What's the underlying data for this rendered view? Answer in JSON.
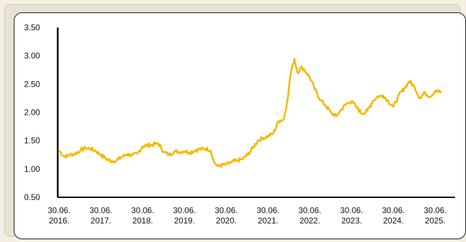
{
  "chart_data": {
    "type": "line",
    "title": "",
    "xlabel": "",
    "ylabel": "",
    "x_tick_labels": [
      {
        "line1": "30.06.",
        "line2": "2016."
      },
      {
        "line1": "30.06.",
        "line2": "2017."
      },
      {
        "line1": "30.06.",
        "line2": "2018."
      },
      {
        "line1": "30.06.",
        "line2": "2019."
      },
      {
        "line1": "30.06.",
        "line2": "2020."
      },
      {
        "line1": "30.06.",
        "line2": "2021."
      },
      {
        "line1": "30.06.",
        "line2": "2022."
      },
      {
        "line1": "30.06.",
        "line2": "2023."
      },
      {
        "line1": "30.06.",
        "line2": "2024."
      },
      {
        "line1": "30.06.",
        "line2": "2025."
      }
    ],
    "y_tick_labels": [
      "0.50",
      "1.00",
      "1.50",
      "2.00",
      "2.50",
      "3.00",
      "3.50"
    ],
    "ylim": [
      0.5,
      3.5
    ],
    "xlim": [
      "2016-06-30",
      "2025-08-31"
    ],
    "grid": false,
    "series": [
      {
        "color": "#f5b800",
        "points": [
          [
            "2016-06-30",
            1.32
          ],
          [
            "2016-08-15",
            1.22
          ],
          [
            "2016-10-01",
            1.25
          ],
          [
            "2016-11-15",
            1.27
          ],
          [
            "2017-01-01",
            1.33
          ],
          [
            "2017-02-15",
            1.37
          ],
          [
            "2017-04-01",
            1.36
          ],
          [
            "2017-05-15",
            1.32
          ],
          [
            "2017-06-30",
            1.25
          ],
          [
            "2017-08-15",
            1.18
          ],
          [
            "2017-10-01",
            1.14
          ],
          [
            "2017-11-15",
            1.15
          ],
          [
            "2018-01-01",
            1.22
          ],
          [
            "2018-02-15",
            1.26
          ],
          [
            "2018-04-01",
            1.24
          ],
          [
            "2018-05-15",
            1.27
          ],
          [
            "2018-06-30",
            1.4
          ],
          [
            "2018-08-15",
            1.42
          ],
          [
            "2018-10-01",
            1.43
          ],
          [
            "2018-11-15",
            1.45
          ],
          [
            "2019-01-01",
            1.3
          ],
          [
            "2019-02-15",
            1.25
          ],
          [
            "2019-04-01",
            1.31
          ],
          [
            "2019-05-15",
            1.3
          ],
          [
            "2019-06-30",
            1.32
          ],
          [
            "2019-08-15",
            1.29
          ],
          [
            "2019-10-01",
            1.33
          ],
          [
            "2019-11-15",
            1.35
          ],
          [
            "2020-01-01",
            1.36
          ],
          [
            "2020-02-15",
            1.33
          ],
          [
            "2020-03-15",
            1.12
          ],
          [
            "2020-04-15",
            1.05
          ],
          [
            "2020-06-30",
            1.08
          ],
          [
            "2020-08-15",
            1.12
          ],
          [
            "2020-10-01",
            1.15
          ],
          [
            "2020-11-15",
            1.17
          ],
          [
            "2021-01-01",
            1.25
          ],
          [
            "2021-02-15",
            1.37
          ],
          [
            "2021-04-01",
            1.5
          ],
          [
            "2021-05-15",
            1.55
          ],
          [
            "2021-06-30",
            1.58
          ],
          [
            "2021-08-15",
            1.63
          ],
          [
            "2021-10-01",
            1.85
          ],
          [
            "2021-11-15",
            1.88
          ],
          [
            "2021-12-15",
            2.2
          ],
          [
            "2022-01-15",
            2.7
          ],
          [
            "2022-02-15",
            2.95
          ],
          [
            "2022-03-15",
            2.7
          ],
          [
            "2022-04-15",
            2.8
          ],
          [
            "2022-05-15",
            2.75
          ],
          [
            "2022-06-30",
            2.62
          ],
          [
            "2022-08-15",
            2.4
          ],
          [
            "2022-10-01",
            2.22
          ],
          [
            "2022-11-15",
            2.12
          ],
          [
            "2023-01-01",
            2.0
          ],
          [
            "2023-02-15",
            1.93
          ],
          [
            "2023-04-01",
            2.05
          ],
          [
            "2023-05-15",
            2.15
          ],
          [
            "2023-06-30",
            2.2
          ],
          [
            "2023-08-15",
            2.08
          ],
          [
            "2023-10-01",
            1.98
          ],
          [
            "2023-11-15",
            2.03
          ],
          [
            "2024-01-01",
            2.2
          ],
          [
            "2024-02-15",
            2.28
          ],
          [
            "2024-04-01",
            2.3
          ],
          [
            "2024-05-15",
            2.2
          ],
          [
            "2024-06-30",
            2.1
          ],
          [
            "2024-08-15",
            2.3
          ],
          [
            "2024-10-01",
            2.42
          ],
          [
            "2024-11-15",
            2.55
          ],
          [
            "2025-01-01",
            2.45
          ],
          [
            "2025-02-15",
            2.25
          ],
          [
            "2025-04-01",
            2.35
          ],
          [
            "2025-05-15",
            2.28
          ],
          [
            "2025-06-30",
            2.38
          ],
          [
            "2025-08-15",
            2.36
          ]
        ]
      }
    ]
  }
}
